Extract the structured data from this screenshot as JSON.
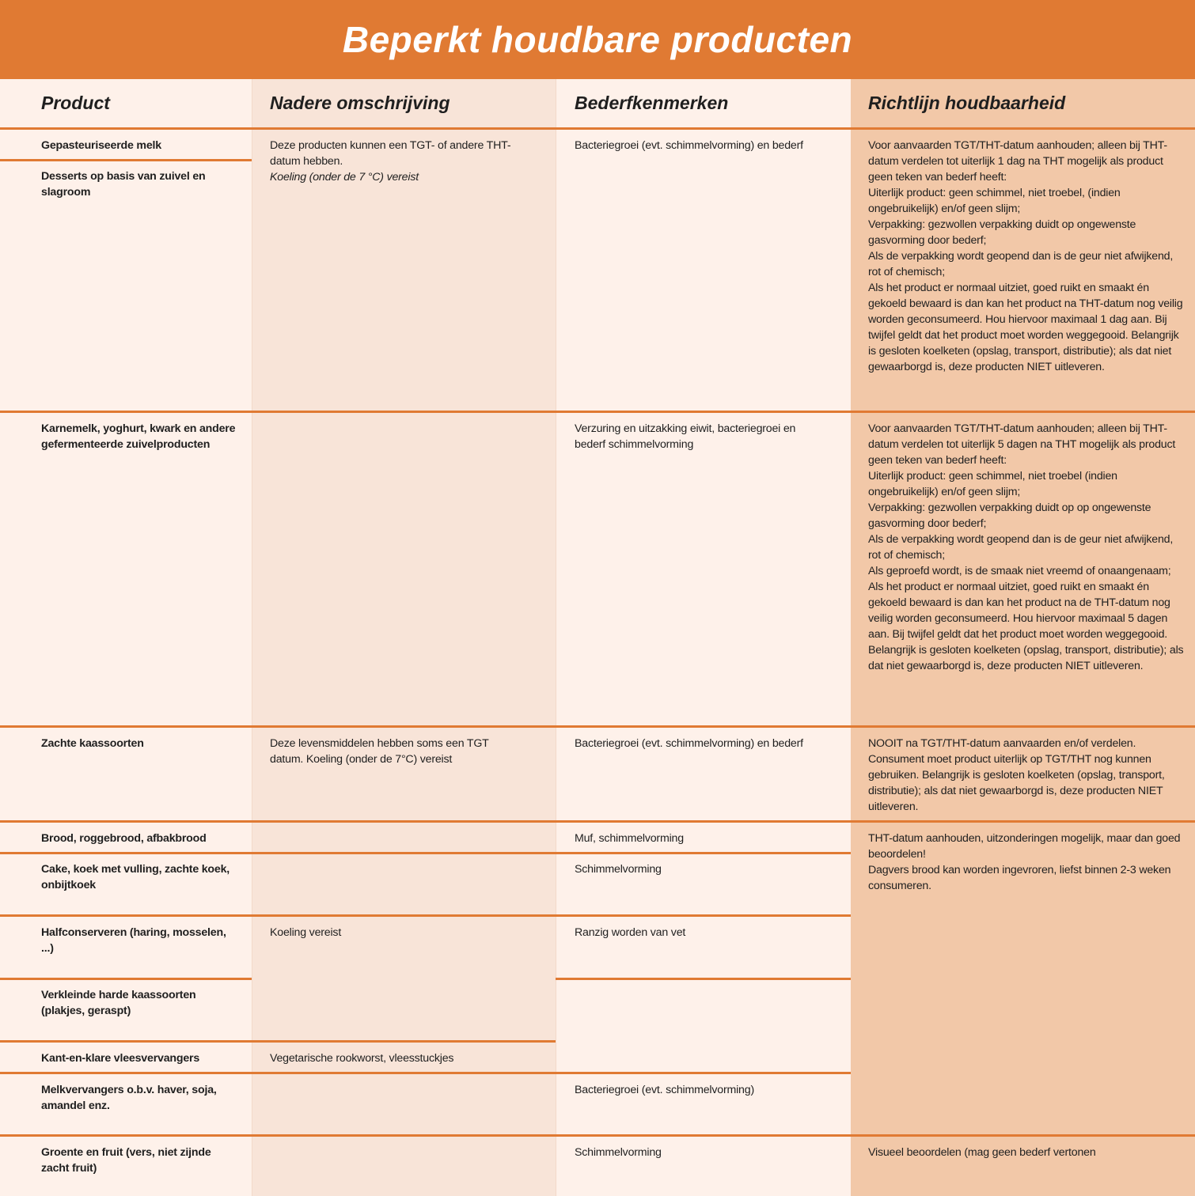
{
  "title": "Beperkt houdbare producten",
  "colors": {
    "accent": "#E07A33",
    "col_light": "#FEF1EA",
    "col_mid": "#F8E4D8",
    "col_dark": "#F2C8A8"
  },
  "headers": [
    "Product",
    "Nadere omschrijving",
    "Bederfkenmerken",
    "Richtlijn houdbaarheid"
  ],
  "product": [
    "Gepasteuriseerde melk",
    "Desserts op basis van zuivel en slagroom",
    "Karnemelk, yoghurt, kwark en andere gefermenteerde zuivelproducten",
    "Zachte kaassoorten",
    "Brood, roggebrood, afbakbrood",
    "Cake, koek met vulling, zachte koek, onbijtkoek",
    "Halfconserveren (haring, mosselen, ...)",
    "Verkleinde harde kaassoorten (plakjes, geraspt)",
    "Kant-en-klare vleesvervangers",
    "Melkvervangers o.b.v. haver, soja, amandel enz.",
    "Groente en fruit (vers, niet zijnde zacht fruit)"
  ],
  "omschrijving": {
    "melk": [
      "Deze producten kunnen een TGT- of andere THT-datum hebben.",
      "Koeling (onder de 7 °C) vereist"
    ],
    "kaas": "Deze levensmiddelen hebben soms een TGT datum. Koeling (onder de 7°C) vereist",
    "halfconserven": "Koeling vereist",
    "vleesvervangers": "Vegetarische rookworst, vleesstuckjes"
  },
  "bederf": [
    "Bacteriegroei (evt. schimmelvorming) en bederf",
    "Verzuring en uitzakking eiwit, bacteriegroei en bederf schimmelvorming",
    "Bacteriegroei (evt. schimmelvorming) en bederf",
    "Muf, schimmelvorming",
    "Schimmelvorming",
    "Ranzig worden van vet",
    "Bacteriegroei (evt. schimmelvorming)",
    "Schimmelvorming"
  ],
  "richtlijn": {
    "melk": [
      "Voor aanvaarden TGT/THT-datum aanhouden; alleen bij THT-datum verdelen tot uiterlijk 1 dag na THT mogelijk als product geen teken van bederf heeft:",
      "Uiterlijk product: geen schimmel, niet troebel, (indien ongebruikelijk) en/of geen slijm;",
      "Verpakking: gezwollen verpakking duidt op ongewenste gasvorming door bederf;",
      "Als de verpakking wordt geopend dan is de geur niet afwijkend, rot of chemisch;",
      "Als het product er normaal uitziet, goed ruikt en smaakt én gekoeld bewaard is dan kan het product na THT-datum nog veilig worden geconsumeerd. Hou hiervoor maximaal 1 dag aan. Bij twijfel geldt dat het product moet worden weggegooid. Belangrijk is gesloten koelketen (opslag, transport, distributie); als dat niet gewaarborgd is, deze producten NIET uitleveren."
    ],
    "karnemelk": [
      "Voor aanvaarden TGT/THT-datum aanhouden; alleen bij THT-datum verdelen tot uiterlijk 5 dagen na THT mogelijk als product geen teken van bederf heeft:",
      "Uiterlijk product: geen schimmel, niet troebel (indien ongebruikelijk) en/of geen slijm;",
      "Verpakking: gezwollen verpakking duidt op op ongewenste gasvorming door bederf;",
      "Als de verpakking wordt geopend dan is de geur niet afwijkend, rot of chemisch;",
      "Als geproefd wordt, is de smaak niet vreemd of onaangenaam;",
      "Als het product er normaal uitziet, goed ruikt en smaakt én gekoeld bewaard is dan kan het product na de THT-datum nog veilig worden geconsumeerd. Hou hiervoor maximaal 5 dagen aan. Bij twijfel geldt dat het product moet worden weggegooid.",
      "Belangrijk is gesloten koelketen (opslag, transport, distributie); als dat niet gewaarborgd is, deze producten NIET uitleveren."
    ],
    "kaas": "NOOIT na TGT/THT-datum aanvaarden en/of verdelen. Consument moet product uiterlijk op TGT/THT nog kunnen gebruiken. Belangrijk is gesloten koelketen (opslag, transport, distributie); als dat niet gewaarborgd is, deze producten NIET uitleveren.",
    "brood": [
      "THT-datum aanhouden, uitzonderingen mogelijk, maar dan goed beoordelen!",
      "Dagvers brood kan worden ingevroren, liefst binnen 2-3 weken consumeren."
    ],
    "groente": "Visueel beoordelen (mag geen bederf vertonen"
  }
}
